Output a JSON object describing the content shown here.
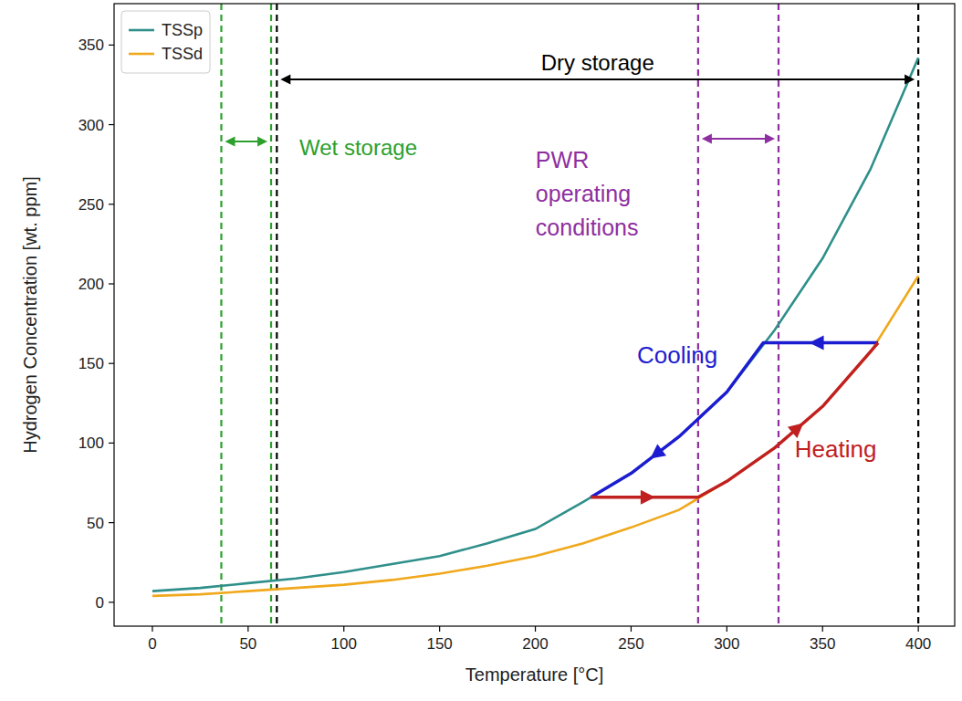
{
  "chart_data": {
    "type": "line",
    "x_label": "Temperature [°C]",
    "y_label": "Hydrogen Concentration [wt. ppm]",
    "xlim": [
      -20,
      419
    ],
    "ylim": [
      -15,
      376
    ],
    "xticks": [
      0,
      50,
      100,
      150,
      200,
      250,
      300,
      350,
      400
    ],
    "yticks": [
      0,
      50,
      100,
      150,
      200,
      250,
      300,
      350
    ],
    "grid": false,
    "legend": "upper left",
    "x": [
      0,
      25,
      50,
      75,
      100,
      125,
      150,
      175,
      200,
      225,
      250,
      275,
      300,
      325,
      350,
      375,
      400
    ],
    "series": [
      {
        "name": "TSSp",
        "color": "#2f8f8a",
        "values": [
          7,
          9,
          12,
          15,
          19,
          24,
          29,
          37,
          46,
          63,
          81,
          104,
          132,
          171,
          216,
          272,
          342
        ]
      },
      {
        "name": "TSSd",
        "color": "#f0a81c",
        "values": [
          4,
          5,
          7,
          9,
          11,
          14,
          18,
          23,
          29,
          37,
          47,
          58,
          76,
          97,
          123,
          157,
          205
        ]
      }
    ],
    "paths": [
      {
        "label": "Cooling",
        "color": "#1c1cd0",
        "x": [
          379,
          319,
          300,
          275,
          250,
          229
        ],
        "values": [
          163,
          163,
          132,
          104,
          81,
          66
        ]
      },
      {
        "label": "Heating",
        "color": "#c0201f",
        "x": [
          229,
          285,
          300,
          325,
          350,
          379
        ],
        "values": [
          66,
          66,
          76,
          97,
          123,
          163
        ]
      }
    ],
    "regions": [
      {
        "label": "Wet storage",
        "color": "#2ca02c",
        "x": [
          36,
          62
        ]
      },
      {
        "label": "Dry storage",
        "color": "#000000",
        "x": [
          65,
          400
        ]
      },
      {
        "label": "PWR operating conditions",
        "color": "#8e2fa0",
        "x": [
          285,
          327
        ]
      }
    ]
  }
}
